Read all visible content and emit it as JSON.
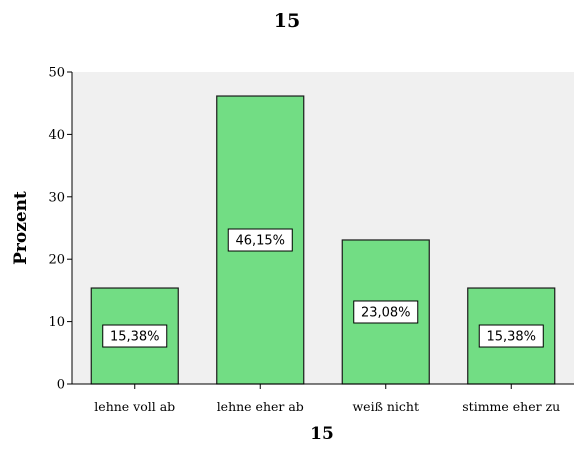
{
  "chart_data": {
    "type": "bar",
    "title": "15",
    "xlabel": "15",
    "ylabel": "Prozent",
    "ylim": [
      0,
      50
    ],
    "yticks": [
      0,
      10,
      20,
      30,
      40,
      50
    ],
    "grid": false,
    "categories": [
      "lehne voll ab",
      "lehne eher ab",
      "weiß nicht",
      "stimme eher zu"
    ],
    "values": [
      15.38,
      46.15,
      23.08,
      15.38
    ],
    "data_labels": [
      "15,38%",
      "46,15%",
      "23,08%",
      "15,38%"
    ],
    "colors": {
      "bar_fill": "#72dd84",
      "bar_stroke": "#1a1a1a",
      "plot_background": "#f0f0f0",
      "axis": "#000000"
    }
  }
}
